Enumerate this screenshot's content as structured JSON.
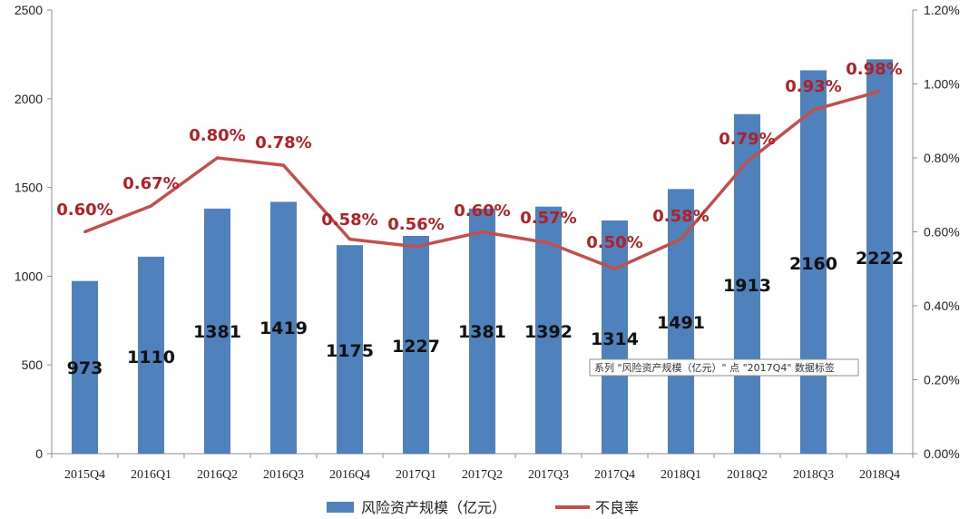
{
  "chart_data": {
    "type": "bar+line",
    "categories": [
      "2015Q4",
      "2016Q1",
      "2016Q2",
      "2016Q3",
      "2016Q4",
      "2017Q1",
      "2017Q2",
      "2017Q3",
      "2017Q4",
      "2018Q1",
      "2018Q2",
      "2018Q3",
      "2018Q4"
    ],
    "series": [
      {
        "name": "风险资产规模（亿元）",
        "type": "bar",
        "axis": "left",
        "color": "#4f81bd",
        "values": [
          973,
          1110,
          1381,
          1419,
          1175,
          1227,
          1381,
          1392,
          1314,
          1491,
          1913,
          2160,
          2222
        ],
        "labels": [
          "973",
          "1110",
          "1381",
          "1419",
          "1175",
          "1227",
          "1381",
          "1392",
          "1314",
          "1491",
          "1913",
          "2160",
          "2222"
        ]
      },
      {
        "name": "不良率",
        "type": "line",
        "axis": "right",
        "color": "#c0504d",
        "values": [
          0.6,
          0.67,
          0.8,
          0.78,
          0.58,
          0.56,
          0.6,
          0.57,
          0.5,
          0.58,
          0.79,
          0.93,
          0.98
        ],
        "labels": [
          "0.60%",
          "0.67%",
          "0.80%",
          "0.78%",
          "0.58%",
          "0.56%",
          "0.60%",
          "0.57%",
          "0.50%",
          "0.58%",
          "0.79%",
          "0.93%",
          "0.98%"
        ]
      }
    ],
    "y_left": {
      "min": 0,
      "max": 2500,
      "ticks": [
        "0",
        "500",
        "1000",
        "1500",
        "2000",
        "2500"
      ]
    },
    "y_right": {
      "min": 0,
      "max": 1.2,
      "ticks": [
        "0.00%",
        "0.20%",
        "0.40%",
        "0.60%",
        "0.80%",
        "1.00%",
        "1.20%"
      ]
    },
    "legend": {
      "position": "bottom",
      "items": [
        "风险资产规模（亿元）",
        "不良率"
      ]
    },
    "tooltip": "系列 \"风险资产规模（亿元）\" 点 \"2017Q4\" 数据标签",
    "grid": false
  }
}
